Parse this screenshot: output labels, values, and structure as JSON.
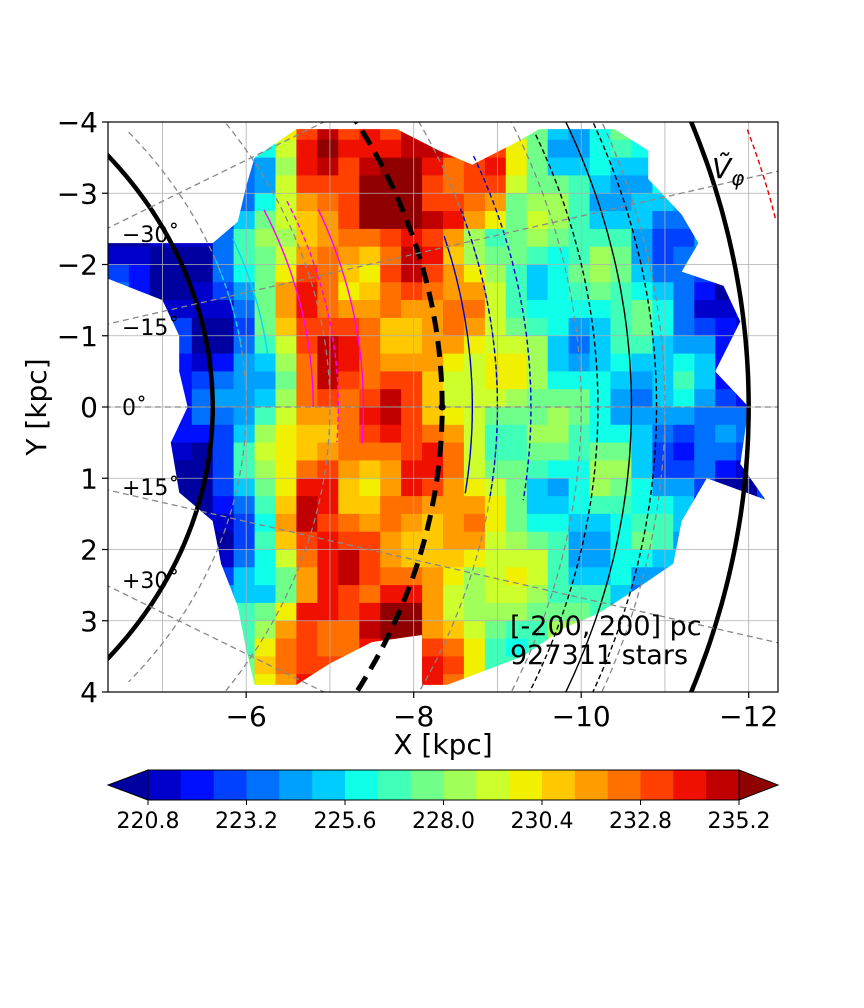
{
  "chart_data": {
    "type": "heatmap",
    "title": "",
    "quantity_label": "Ṽ",
    "quantity_subscript": "φ",
    "xlabel": "X [kpc]",
    "ylabel": "Y [kpc]",
    "xlim": [
      -4.35,
      -12.35
    ],
    "ylim": [
      4,
      -4
    ],
    "x_ticks": [
      -6,
      -8,
      -10,
      -12
    ],
    "x_tick_labels": [
      "−6",
      "−8",
      "−10",
      "−12"
    ],
    "y_ticks": [
      -4,
      -3,
      -2,
      -1,
      0,
      1,
      2,
      3,
      4
    ],
    "y_tick_labels": [
      "−4",
      "−3",
      "−2",
      "−1",
      "0",
      "1",
      "2",
      "3",
      "4"
    ],
    "grid": true,
    "sun": {
      "x": -8.34,
      "y": 0
    },
    "azimuth_labels": [
      "−30˚",
      "−15˚",
      "0˚",
      "+15˚",
      "+30˚"
    ],
    "azimuth_angles_deg": [
      -30,
      -15,
      0,
      15,
      30
    ],
    "annotation_lines": [
      "[-200, 200] pc",
      "927311 stars"
    ],
    "colorbar": {
      "levels": [
        220.0,
        220.8,
        221.6,
        222.4,
        223.2,
        224.0,
        224.8,
        225.6,
        226.4,
        227.2,
        228.0,
        228.8,
        229.6,
        230.4,
        231.2,
        232.0,
        232.8,
        233.6,
        234.4,
        235.2,
        236.0
      ],
      "tick_values": [
        220.8,
        223.2,
        225.6,
        228.0,
        230.4,
        232.8,
        235.2
      ],
      "tick_labels": [
        "220.8",
        "223.2",
        "225.6",
        "228.0",
        "230.4",
        "232.8",
        "235.2"
      ],
      "colors": [
        "#0000a0",
        "#0000cc",
        "#0010ff",
        "#0040ff",
        "#0070ff",
        "#00a0ff",
        "#00ccff",
        "#10ffe8",
        "#40ffb8",
        "#70ff88",
        "#a0ff58",
        "#ccff2c",
        "#f0f000",
        "#ffc800",
        "#ff9c00",
        "#ff7000",
        "#ff4000",
        "#f01000",
        "#c00000",
        "#900000"
      ],
      "extend": "both"
    },
    "approx_field_by_x": [
      {
        "x": -5.6,
        "vphi": 221.5
      },
      {
        "x": -6.2,
        "vphi": 226.5
      },
      {
        "x": -6.8,
        "vphi": 233.5
      },
      {
        "x": -7.4,
        "vphi": 232.0
      },
      {
        "x": -7.9,
        "vphi": 233.0
      },
      {
        "x": -8.4,
        "vphi": 231.5
      },
      {
        "x": -8.9,
        "vphi": 229.0
      },
      {
        "x": -9.4,
        "vphi": 227.5
      },
      {
        "x": -9.9,
        "vphi": 226.0
      },
      {
        "x": -10.4,
        "vphi": 226.5
      },
      {
        "x": -10.9,
        "vphi": 225.0
      },
      {
        "x": -11.4,
        "vphi": 224.0
      },
      {
        "x": -11.9,
        "vphi": 221.5
      }
    ]
  }
}
